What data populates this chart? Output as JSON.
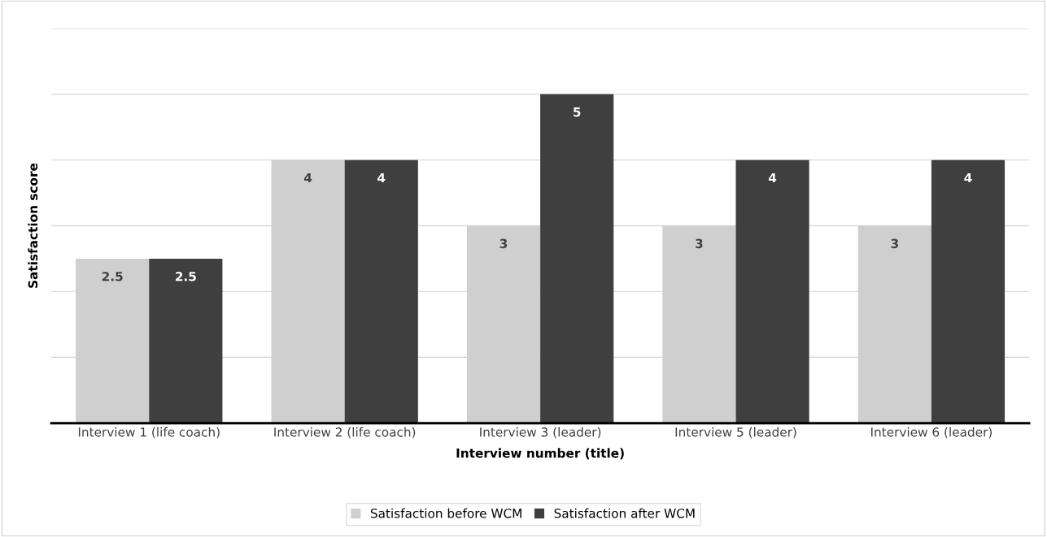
{
  "chart_data": {
    "type": "bar",
    "xlabel": "Interview number (title)",
    "ylabel": "Satisfaction score",
    "categories": [
      "Interview 1 (life coach)",
      "Interview 2 (life coach)",
      "Interview 3 (leader)",
      "Interview 5 (leader)",
      "Interview 6 (leader)"
    ],
    "series": [
      {
        "name": "Satisfaction before WCM",
        "color": "#d0cfcf",
        "values": [
          2.5,
          4,
          3,
          3,
          3
        ]
      },
      {
        "name": "Satisfaction after WCM",
        "color": "#3f3f3f",
        "values": [
          2.5,
          4,
          5,
          4,
          4
        ]
      }
    ],
    "ylim": [
      0,
      6
    ],
    "yticks": [
      {
        "value": 0,
        "label": null
      },
      {
        "value": 1,
        "label": null
      },
      {
        "value": 2,
        "label": null
      },
      {
        "value": 3,
        "label": null
      },
      {
        "value": 4,
        "label": null
      },
      {
        "value": 5,
        "label": null
      },
      {
        "value": 6,
        "label": null
      }
    ],
    "tick_labels": "x",
    "grid": "y",
    "data_labels": true,
    "legend": "bottom"
  }
}
